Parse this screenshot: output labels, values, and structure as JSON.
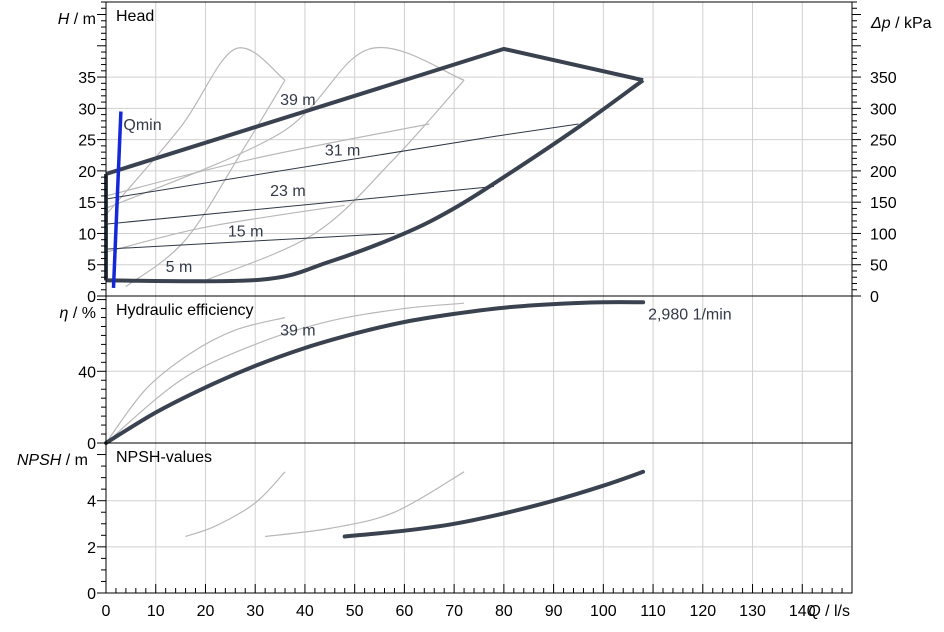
{
  "chart_data": {
    "type": "line",
    "x_axis": {
      "label_italic": "Q",
      "label_unit": "/ l/s",
      "range": [
        0,
        150
      ],
      "ticks": [
        0,
        10,
        20,
        30,
        40,
        50,
        60,
        70,
        80,
        90,
        100,
        110,
        120,
        130,
        140
      ]
    },
    "panels": [
      {
        "title": "Head",
        "ylabel_italic": "H",
        "ylabel_unit": "/ m",
        "yrange": [
          0,
          47
        ],
        "yticks": [
          0,
          5,
          10,
          15,
          20,
          25,
          30,
          35
        ],
        "right_axis": {
          "label_italic": "Δp",
          "label_unit": "/ kPa",
          "ticks": [
            0,
            50,
            100,
            150,
            200,
            250,
            300,
            350
          ]
        },
        "annotations": [
          {
            "text": "Qmin",
            "x": 3.5,
            "y": 26.5
          },
          {
            "text": "39 m",
            "x": 35,
            "y": 30.5
          },
          {
            "text": "31 m",
            "x": 44,
            "y": 22.5
          },
          {
            "text": "23 m",
            "x": 33,
            "y": 16
          },
          {
            "text": "15 m",
            "x": 24.5,
            "y": 9.5
          },
          {
            "text": "5 m",
            "x": 12,
            "y": 3.8
          }
        ],
        "operating_field": {
          "upper": [
            [
              0,
              19.5
            ],
            [
              80,
              39.5
            ],
            [
              108,
              34.5
            ]
          ],
          "lower": [
            [
              0,
              2.5
            ],
            [
              31,
              2.6
            ],
            [
              45,
              5.5
            ],
            [
              60,
              10
            ],
            [
              70,
              14
            ],
            [
              80,
              19
            ],
            [
              95,
              27
            ],
            [
              108,
              34.5
            ]
          ],
          "left": [
            [
              0,
              2.5
            ],
            [
              0,
              19.5
            ]
          ]
        },
        "efficiency_lines": [
          {
            "points": [
              [
                0,
                15.5
              ],
              [
                78,
                25.5
              ],
              [
                95,
                27.5
              ]
            ]
          },
          {
            "points": [
              [
                0,
                11.5
              ],
              [
                78,
                17.5
              ]
            ]
          },
          {
            "points": [
              [
                0,
                7.5
              ],
              [
                58,
                10
              ]
            ]
          }
        ],
        "qmin_line": [
          [
            1.5,
            1.3
          ],
          [
            3,
            29.5
          ]
        ],
        "background_curves": [
          {
            "points": [
              [
                0,
                13
              ],
              [
                15,
                27
              ],
              [
                26,
                39.5
              ],
              [
                36,
                34.5
              ]
            ]
          },
          {
            "points": [
              [
                36,
                34.5
              ],
              [
                28,
                24
              ],
              [
                16,
                9
              ],
              [
                4,
                1.5
              ]
            ]
          },
          {
            "points": [
              [
                0,
                14
              ],
              [
                35,
                26
              ],
              [
                53,
                39.5
              ],
              [
                72,
                34.5
              ]
            ]
          },
          {
            "points": [
              [
                72,
                34.5
              ],
              [
                58,
                22
              ],
              [
                42,
                10
              ],
              [
                20,
                2.5
              ]
            ]
          },
          {
            "points": [
              [
                0,
                16
              ],
              [
                30,
                22
              ],
              [
                65,
                27.5
              ]
            ]
          },
          {
            "points": [
              [
                0,
                7
              ],
              [
                20,
                11
              ],
              [
                48,
                14.5
              ]
            ]
          }
        ]
      },
      {
        "title": "Hydraulic efficiency",
        "ylabel_italic": "η",
        "ylabel_unit": "/ %",
        "yrange": [
          0,
          82
        ],
        "yticks": [
          0,
          40
        ],
        "annotations": [
          {
            "text": "39 m",
            "x": 35,
            "y": 60
          },
          {
            "text": "2,980 1/min",
            "x": 109,
            "y": 69
          }
        ],
        "main_curve": [
          [
            0,
            0
          ],
          [
            10,
            17
          ],
          [
            20,
            31
          ],
          [
            30,
            43
          ],
          [
            40,
            53
          ],
          [
            50,
            61
          ],
          [
            60,
            67.5
          ],
          [
            70,
            72
          ],
          [
            80,
            75.5
          ],
          [
            90,
            77.5
          ],
          [
            100,
            78.5
          ],
          [
            108,
            78.5
          ]
        ],
        "background_curves": [
          {
            "points": [
              [
                0,
                0
              ],
              [
                8,
                30
              ],
              [
                17,
                50
              ],
              [
                26,
                63
              ],
              [
                36,
                70
              ]
            ]
          },
          {
            "points": [
              [
                0,
                0
              ],
              [
                15,
                35
              ],
              [
                30,
                55
              ],
              [
                45,
                68
              ],
              [
                60,
                75
              ],
              [
                72,
                78
              ]
            ]
          }
        ]
      },
      {
        "title": "NPSH-values",
        "ylabel_italic": "NPSH",
        "ylabel_unit": "/ m",
        "yrange": [
          0,
          6.5
        ],
        "yticks": [
          0,
          2,
          4
        ],
        "main_curve": [
          [
            48,
            2.45
          ],
          [
            60,
            2.7
          ],
          [
            70,
            3.0
          ],
          [
            80,
            3.45
          ],
          [
            90,
            4.0
          ],
          [
            100,
            4.65
          ],
          [
            108,
            5.25
          ]
        ],
        "background_curves": [
          {
            "points": [
              [
                16,
                2.45
              ],
              [
                22,
                2.9
              ],
              [
                30,
                3.9
              ],
              [
                36,
                5.25
              ]
            ]
          },
          {
            "points": [
              [
                32,
                2.45
              ],
              [
                45,
                2.8
              ],
              [
                58,
                3.5
              ],
              [
                72,
                5.25
              ]
            ]
          }
        ]
      }
    ]
  }
}
